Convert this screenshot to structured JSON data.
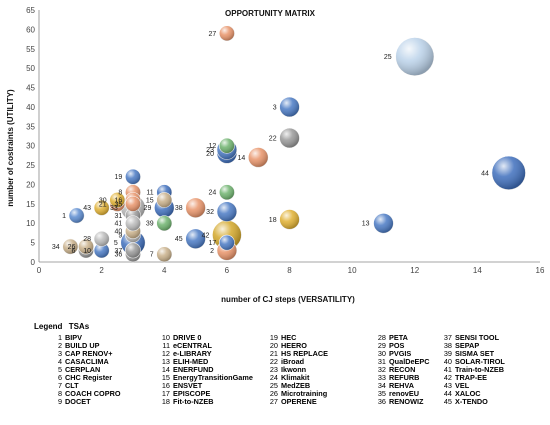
{
  "chart_data": {
    "type": "scatter",
    "bubble": true,
    "title": "OPPORTUNITY MATRIX",
    "xlabel": "number of CJ steps (VERSATILITY)",
    "ylabel": "number of costraints (UTILITY)",
    "xlim": [
      0,
      16
    ],
    "ylim": [
      0,
      65
    ],
    "xticks": [
      0,
      2,
      4,
      6,
      8,
      10,
      12,
      14,
      16
    ],
    "yticks": [
      0,
      5,
      10,
      15,
      20,
      25,
      30,
      35,
      40,
      45,
      50,
      55,
      60,
      65
    ],
    "grid": false,
    "points": [
      {
        "id": "1",
        "x": 1.2,
        "y": 12,
        "size": 2,
        "color": "#5b8bd0"
      },
      {
        "id": "2",
        "x": 6,
        "y": 3,
        "size": 3,
        "color": "#e8946a"
      },
      {
        "id": "3",
        "x": 8,
        "y": 40,
        "size": 3,
        "color": "#4a7ac4"
      },
      {
        "id": "5",
        "x": 3,
        "y": 5,
        "size": 4,
        "color": "#3f6fbd"
      },
      {
        "id": "6",
        "x": 1.5,
        "y": 3,
        "size": 2,
        "color": "#999999"
      },
      {
        "id": "7",
        "x": 4,
        "y": 2,
        "size": 2,
        "color": "#c9b08a"
      },
      {
        "id": "8",
        "x": 3,
        "y": 18,
        "size": 2,
        "color": "#e8946a"
      },
      {
        "id": "9",
        "x": 3,
        "y": 7,
        "size": 2,
        "color": "#bbbbbb"
      },
      {
        "id": "10",
        "x": 2,
        "y": 3,
        "size": 2,
        "color": "#4a7ac4"
      },
      {
        "id": "11",
        "x": 4,
        "y": 18,
        "size": 2,
        "color": "#3f6fbd"
      },
      {
        "id": "12",
        "x": 6,
        "y": 30,
        "size": 2,
        "color": "#6fb36f"
      },
      {
        "id": "13",
        "x": 11,
        "y": 10,
        "size": 3,
        "color": "#4a7ac4"
      },
      {
        "id": "14",
        "x": 7,
        "y": 27,
        "size": 3,
        "color": "#e8946a"
      },
      {
        "id": "15",
        "x": 4,
        "y": 16,
        "size": 2,
        "color": "#c9b08a"
      },
      {
        "id": "16",
        "x": 3,
        "y": 16,
        "size": 2,
        "color": "#e8946a"
      },
      {
        "id": "17",
        "x": 6,
        "y": 5,
        "size": 2,
        "color": "#4a7ac4"
      },
      {
        "id": "18",
        "x": 8,
        "y": 11,
        "size": 3,
        "color": "#e0b032"
      },
      {
        "id": "19",
        "x": 3,
        "y": 22,
        "size": 2,
        "color": "#4a7ac4"
      },
      {
        "id": "20",
        "x": 6,
        "y": 28,
        "size": 3,
        "color": "#3f6fbd"
      },
      {
        "id": "21",
        "x": 2.5,
        "y": 15,
        "size": 2,
        "color": "#e8946a"
      },
      {
        "id": "22",
        "x": 8,
        "y": 32,
        "size": 3,
        "color": "#999999"
      },
      {
        "id": "23",
        "x": 6,
        "y": 29,
        "size": 3,
        "color": "#4a7ac4"
      },
      {
        "id": "24",
        "x": 6,
        "y": 18,
        "size": 2,
        "color": "#6fb36f"
      },
      {
        "id": "25",
        "x": 12,
        "y": 53,
        "size": 7,
        "color": "#bcd3ea"
      },
      {
        "id": "26",
        "x": 1.5,
        "y": 4,
        "size": 2,
        "color": "#c9b08a"
      },
      {
        "id": "27",
        "x": 6,
        "y": 59,
        "size": 2,
        "color": "#e8946a"
      },
      {
        "id": "28",
        "x": 2,
        "y": 6,
        "size": 2,
        "color": "#bbbbbb"
      },
      {
        "id": "29",
        "x": 4,
        "y": 14,
        "size": 3,
        "color": "#3f6fbd"
      },
      {
        "id": "30",
        "x": 2.5,
        "y": 16,
        "size": 2,
        "color": "#e0b032"
      },
      {
        "id": "31",
        "x": 3,
        "y": 12,
        "size": 2,
        "color": "#999999"
      },
      {
        "id": "32",
        "x": 6,
        "y": 13,
        "size": 3,
        "color": "#4a7ac4"
      },
      {
        "id": "33",
        "x": 3,
        "y": 14,
        "size": 4,
        "color": "#bbbbbb"
      },
      {
        "id": "34",
        "x": 1,
        "y": 4,
        "size": 2,
        "color": "#c9b08a"
      },
      {
        "id": "35",
        "x": 3,
        "y": 15,
        "size": 2,
        "color": "#e8946a"
      },
      {
        "id": "36",
        "x": 3,
        "y": 2,
        "size": 2,
        "color": "#999999"
      },
      {
        "id": "37",
        "x": 3,
        "y": 3,
        "size": 2,
        "color": "#999999"
      },
      {
        "id": "38",
        "x": 5,
        "y": 14,
        "size": 3,
        "color": "#e8946a"
      },
      {
        "id": "39",
        "x": 4,
        "y": 10,
        "size": 2,
        "color": "#6fb36f"
      },
      {
        "id": "40",
        "x": 3,
        "y": 8,
        "size": 2,
        "color": "#c9b08a"
      },
      {
        "id": "41",
        "x": 3,
        "y": 10,
        "size": 2,
        "color": "#bbbbbb"
      },
      {
        "id": "42",
        "x": 6,
        "y": 7,
        "size": 5,
        "color": "#d4a82a"
      },
      {
        "id": "43",
        "x": 2,
        "y": 14,
        "size": 2,
        "color": "#e0b032"
      },
      {
        "id": "44",
        "x": 15,
        "y": 23,
        "size": 6,
        "color": "#3f6fbd"
      },
      {
        "id": "45",
        "x": 5,
        "y": 6,
        "size": 3,
        "color": "#4a7ac4"
      }
    ]
  },
  "legend": {
    "title": "Legend",
    "subtitle": "TSAs",
    "columns": [
      [
        {
          "num": "1",
          "name": "BIPV"
        },
        {
          "num": "2",
          "name": "BUILD UP"
        },
        {
          "num": "3",
          "name": "CAP RENOV+"
        },
        {
          "num": "4",
          "name": "CASACLIMA"
        },
        {
          "num": "5",
          "name": "CERPLAN"
        },
        {
          "num": "6",
          "name": "CHC Register"
        },
        {
          "num": "7",
          "name": "CLT"
        },
        {
          "num": "8",
          "name": "COACH COPRO"
        },
        {
          "num": "9",
          "name": "DOCET"
        }
      ],
      [
        {
          "num": "10",
          "name": "DRIVE 0"
        },
        {
          "num": "11",
          "name": "eCENTRAL"
        },
        {
          "num": "12",
          "name": "e-LIBRARY"
        },
        {
          "num": "13",
          "name": "ELIH-MED"
        },
        {
          "num": "14",
          "name": "ENERFUND"
        },
        {
          "num": "15",
          "name": "EnergyTransitionGame"
        },
        {
          "num": "16",
          "name": "ENSVET"
        },
        {
          "num": "17",
          "name": "EPISCOPE"
        },
        {
          "num": "18",
          "name": "Fit-to-NZEB"
        }
      ],
      [
        {
          "num": "19",
          "name": "HEC"
        },
        {
          "num": "20",
          "name": "HEERO"
        },
        {
          "num": "21",
          "name": "HS REPLACE"
        },
        {
          "num": "22",
          "name": "iBroad"
        },
        {
          "num": "23",
          "name": "Ikwonn"
        },
        {
          "num": "24",
          "name": "Klimakit"
        },
        {
          "num": "25",
          "name": "MedZEB"
        },
        {
          "num": "26",
          "name": "Microtraining"
        },
        {
          "num": "27",
          "name": "OPERENE"
        }
      ],
      [
        {
          "num": "28",
          "name": "PETA"
        },
        {
          "num": "29",
          "name": "POS"
        },
        {
          "num": "30",
          "name": "PVGIS"
        },
        {
          "num": "31",
          "name": "QualDeEPC"
        },
        {
          "num": "32",
          "name": "RECON"
        },
        {
          "num": "33",
          "name": "REFURB"
        },
        {
          "num": "34",
          "name": "REHVA"
        },
        {
          "num": "35",
          "name": "renovEU"
        },
        {
          "num": "36",
          "name": "RENOWIZ"
        }
      ],
      [
        {
          "num": "37",
          "name": "SENSI TOOL"
        },
        {
          "num": "38",
          "name": "SEPAP"
        },
        {
          "num": "39",
          "name": "SISMA SET"
        },
        {
          "num": "40",
          "name": "SOLAR-TIROL"
        },
        {
          "num": "41",
          "name": "Train-to-NZEB"
        },
        {
          "num": "42",
          "name": "TRAP-EE"
        },
        {
          "num": "43",
          "name": "VEL"
        },
        {
          "num": "44",
          "name": "XALOC"
        },
        {
          "num": "45",
          "name": "X-TENDO"
        }
      ]
    ]
  }
}
